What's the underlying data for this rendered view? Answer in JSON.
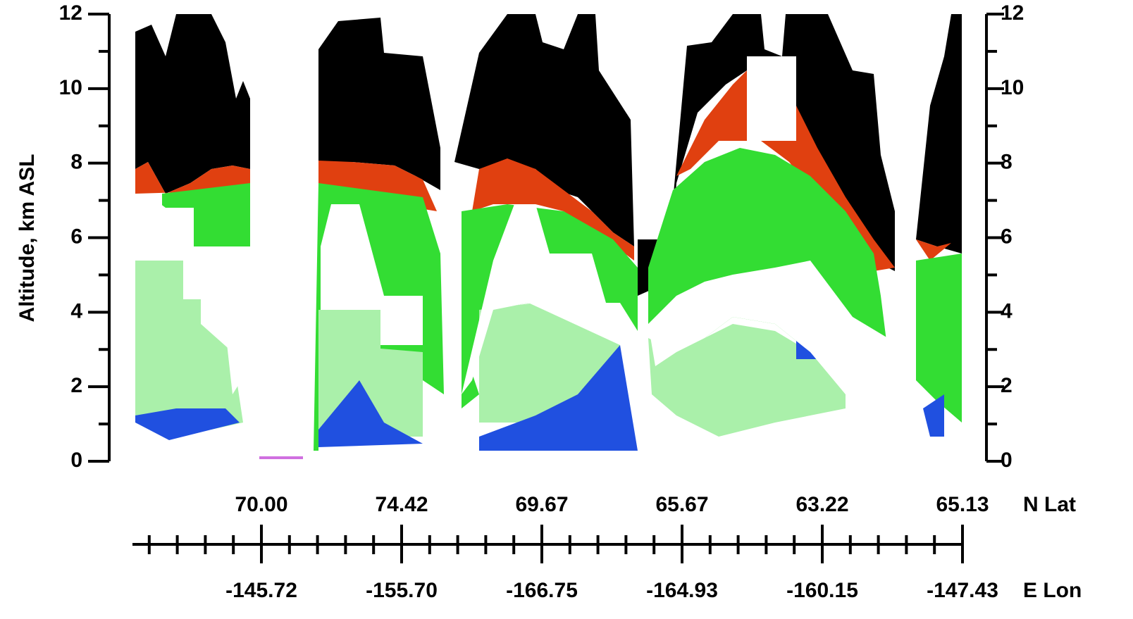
{
  "chart_data": {
    "type": "curtain",
    "ylabel": "Altitude, km ASL",
    "ylim": [
      0,
      12
    ],
    "yticks": [
      0,
      2,
      4,
      6,
      8,
      10,
      12
    ],
    "y_minor_ticks": [
      1,
      3,
      5,
      7,
      9,
      11
    ],
    "y2lim": [
      0,
      12
    ],
    "y2ticks": [
      0,
      2,
      4,
      6,
      8,
      10,
      12
    ],
    "lat_title": "N Lat",
    "lat_labels": [
      "70.00",
      "74.42",
      "69.67",
      "65.67",
      "63.22",
      "65.13"
    ],
    "lon_title": "E Lon",
    "lon_labels": [
      "-145.72",
      "-155.70",
      "-166.75",
      "-164.93",
      "-160.15",
      "-147.43"
    ]
  }
}
